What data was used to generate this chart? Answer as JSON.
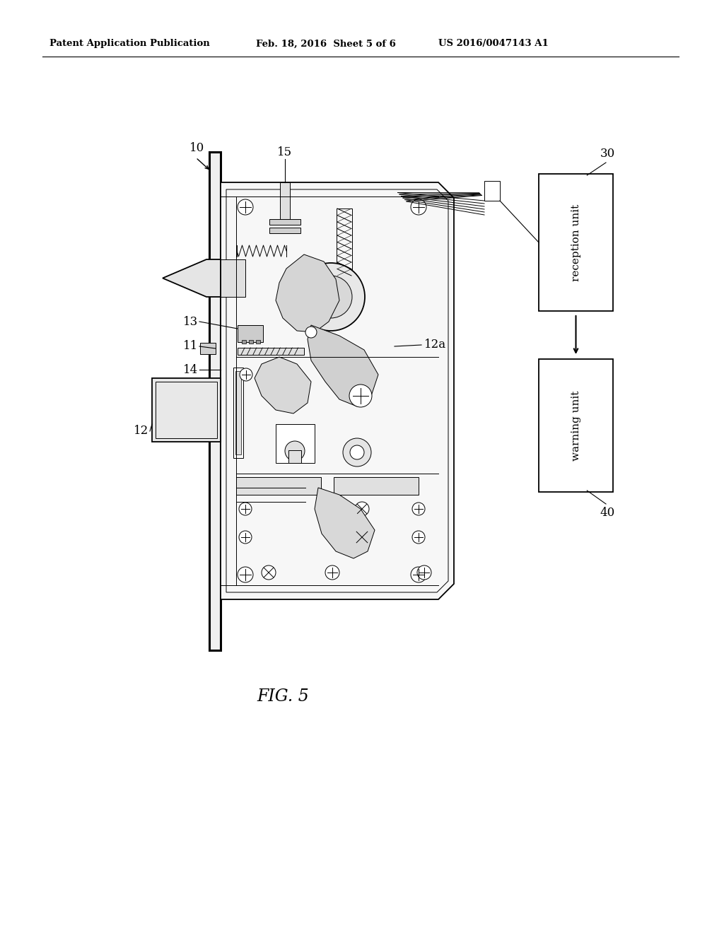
{
  "bg_color": "#ffffff",
  "header_left": "Patent Application Publication",
  "header_center": "Feb. 18, 2016  Sheet 5 of 6",
  "header_right": "US 2016/0047143 A1",
  "fig_label": "FIG. 5",
  "label_10": "10",
  "label_11": "11",
  "label_12": "12",
  "label_12a": "12a",
  "label_13": "13",
  "label_14": "14",
  "label_15": "15",
  "label_30": "30",
  "label_40": "40",
  "box1_text": "reception unit",
  "box2_text": "warning unit"
}
